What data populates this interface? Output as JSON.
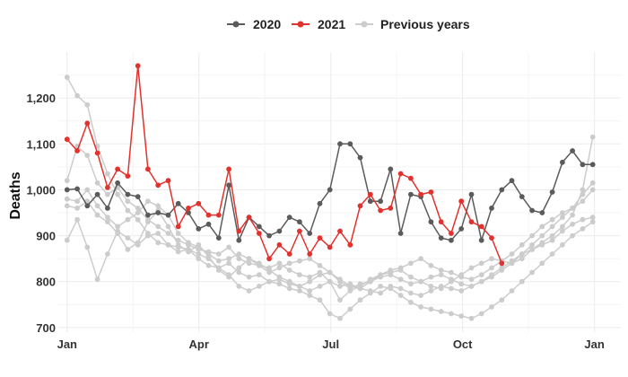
{
  "chart_data": {
    "type": "line",
    "ylabel": "Deaths",
    "ylim": [
      690,
      1300
    ],
    "xlim": [
      -0.2,
      12.6
    ],
    "x_ticks": [
      {
        "label": "Jan",
        "value": 0
      },
      {
        "label": "Apr",
        "value": 3
      },
      {
        "label": "Jul",
        "value": 6
      },
      {
        "label": "Oct",
        "value": 9
      },
      {
        "label": "Jan",
        "value": 12
      }
    ],
    "y_ticks": [
      {
        "label": "700",
        "value": 700
      },
      {
        "label": "800",
        "value": 800
      },
      {
        "label": "900",
        "value": 900
      },
      {
        "label": "1,000",
        "value": 1000
      },
      {
        "label": "1,100",
        "value": 1100
      },
      {
        "label": "1,200",
        "value": 1200
      }
    ],
    "grid": true,
    "legend_position": "top-center",
    "legend": [
      {
        "label": "2020",
        "color": "#5b5b5b"
      },
      {
        "label": "2021",
        "color": "#e2322e"
      },
      {
        "label": "Previous years",
        "color": "#cccccc"
      }
    ],
    "series": [
      {
        "name": "Previous years",
        "color": "#cccccc",
        "x": [
          0.0,
          0.23,
          0.46,
          0.69,
          0.92,
          1.15,
          1.38,
          1.61,
          1.84,
          2.07,
          2.3,
          2.53,
          2.76,
          2.99,
          3.22,
          3.45,
          3.68,
          3.91,
          4.14,
          4.37,
          4.6,
          4.83,
          5.06,
          5.29,
          5.52,
          5.75,
          5.98,
          6.21,
          6.44,
          6.67,
          6.9,
          7.13,
          7.36,
          7.59,
          7.82,
          8.05,
          8.28,
          8.51,
          8.74,
          8.97,
          9.2,
          9.43,
          9.66,
          9.89,
          10.12,
          10.35,
          10.58,
          10.81,
          11.04,
          11.27,
          11.5,
          11.73,
          11.96
        ],
        "values": [
          1245,
          1205,
          1185,
          1095,
          1035,
          990,
          955,
          935,
          905,
          885,
          880,
          875,
          870,
          850,
          835,
          830,
          840,
          820,
          810,
          815,
          800,
          805,
          795,
          790,
          780,
          790,
          800,
          790,
          795,
          785,
          780,
          775,
          790,
          785,
          775,
          770,
          780,
          790,
          785,
          780,
          790,
          800,
          810,
          825,
          840,
          860,
          880,
          900,
          920,
          940,
          960,
          990,
          1015
        ]
      },
      {
        "name": "Previous years",
        "color": "#cccccc",
        "x": [
          0.0,
          0.23,
          0.46,
          0.69,
          0.92,
          1.15,
          1.38,
          1.61,
          1.84,
          2.07,
          2.3,
          2.53,
          2.76,
          2.99,
          3.22,
          3.45,
          3.68,
          3.91,
          4.14,
          4.37,
          4.6,
          4.83,
          5.06,
          5.29,
          5.52,
          5.75,
          5.98,
          6.21,
          6.44,
          6.67,
          6.9,
          7.13,
          7.36,
          7.59,
          7.82,
          8.05,
          8.28,
          8.51,
          8.74,
          8.97,
          9.2,
          9.43,
          9.66,
          9.89,
          10.12,
          10.35,
          10.58,
          10.81,
          11.04,
          11.27,
          11.5,
          11.73,
          11.96
        ],
        "values": [
          1020,
          1095,
          1075,
          1015,
          990,
          1005,
          975,
          960,
          935,
          920,
          905,
          890,
          880,
          870,
          865,
          860,
          875,
          850,
          840,
          835,
          830,
          840,
          825,
          815,
          810,
          820,
          800,
          760,
          780,
          790,
          805,
          815,
          825,
          830,
          840,
          850,
          835,
          825,
          820,
          810,
          805,
          815,
          830,
          845,
          860,
          880,
          900,
          920,
          935,
          950,
          960,
          975,
          1000
        ]
      },
      {
        "name": "Previous years",
        "color": "#cccccc",
        "x": [
          0.0,
          0.23,
          0.46,
          0.69,
          0.92,
          1.15,
          1.38,
          1.61,
          1.84,
          2.07,
          2.3,
          2.53,
          2.76,
          2.99,
          3.22,
          3.45,
          3.68,
          3.91,
          4.14,
          4.37,
          4.6,
          4.83,
          5.06,
          5.29,
          5.52,
          5.75,
          5.98,
          6.21,
          6.44,
          6.67,
          6.9,
          7.13,
          7.36,
          7.59,
          7.82,
          8.05,
          8.28,
          8.51,
          8.74,
          8.97,
          9.2,
          9.43,
          9.66,
          9.89,
          10.12,
          10.35,
          10.58,
          10.81,
          11.04,
          11.27,
          11.5,
          11.73,
          11.96
        ],
        "values": [
          980,
          975,
          1000,
          965,
          940,
          920,
          935,
          950,
          975,
          965,
          945,
          905,
          885,
          875,
          860,
          845,
          850,
          860,
          850,
          835,
          820,
          830,
          840,
          845,
          850,
          835,
          820,
          800,
          785,
          795,
          800,
          810,
          815,
          805,
          795,
          800,
          810,
          815,
          805,
          795,
          790,
          800,
          815,
          830,
          845,
          860,
          870,
          880,
          890,
          910,
          925,
          935,
          940
        ]
      },
      {
        "name": "Previous years",
        "color": "#cccccc",
        "x": [
          0.0,
          0.23,
          0.46,
          0.69,
          0.92,
          1.15,
          1.38,
          1.61,
          1.84,
          2.07,
          2.3,
          2.53,
          2.76,
          2.99,
          3.22,
          3.45,
          3.68,
          3.91,
          4.14,
          4.37,
          4.6,
          4.83,
          5.06,
          5.29,
          5.52,
          5.75,
          5.98,
          6.21,
          6.44,
          6.67,
          6.9,
          7.13,
          7.36,
          7.59,
          7.82,
          8.05,
          8.28,
          8.51,
          8.74,
          8.97,
          9.2,
          9.43,
          9.66,
          9.89,
          10.12,
          10.35,
          10.58,
          10.81,
          11.04,
          11.27,
          11.5,
          11.73,
          11.96
        ],
        "values": [
          890,
          935,
          875,
          805,
          860,
          910,
          895,
          880,
          900,
          905,
          880,
          865,
          870,
          860,
          850,
          830,
          815,
          790,
          780,
          790,
          800,
          795,
          785,
          780,
          770,
          760,
          730,
          720,
          740,
          760,
          775,
          790,
          785,
          770,
          755,
          745,
          740,
          735,
          730,
          725,
          720,
          730,
          745,
          760,
          780,
          800,
          820,
          840,
          860,
          880,
          900,
          915,
          930
        ]
      },
      {
        "name": "Previous years",
        "color": "#cccccc",
        "x": [
          0.0,
          0.23,
          0.46,
          0.69,
          0.92,
          1.15,
          1.38,
          1.61,
          1.84,
          2.07,
          2.3,
          2.53,
          2.76,
          2.99,
          3.22,
          3.45,
          3.68,
          3.91,
          4.14,
          4.37,
          4.6,
          4.83,
          5.06,
          5.29,
          5.52,
          5.75,
          5.98,
          6.21,
          6.44,
          6.67,
          6.9,
          7.13,
          7.36,
          7.59,
          7.82,
          8.05,
          8.28,
          8.51,
          8.74,
          8.97,
          9.2,
          9.43,
          9.66,
          9.89,
          10.12,
          10.35,
          10.58,
          10.81,
          11.04,
          11.27,
          11.5,
          11.73,
          11.96
        ],
        "values": [
          965,
          960,
          975,
          945,
          930,
          905,
          870,
          885,
          930,
          955,
          920,
          880,
          865,
          880,
          855,
          825,
          810,
          830,
          850,
          840,
          825,
          810,
          800,
          790,
          800,
          815,
          820,
          805,
          790,
          785,
          800,
          815,
          820,
          825,
          810,
          800,
          790,
          785,
          800,
          815,
          830,
          840,
          850,
          845,
          840,
          850,
          870,
          885,
          900,
          920,
          945,
          1000,
          1115
        ]
      }
    ],
    "series_highlight": [
      {
        "name": "2020",
        "color": "#5b5b5b",
        "x": [
          0.0,
          0.23,
          0.46,
          0.69,
          0.92,
          1.15,
          1.38,
          1.61,
          1.84,
          2.07,
          2.3,
          2.53,
          2.76,
          2.99,
          3.22,
          3.45,
          3.68,
          3.91,
          4.14,
          4.37,
          4.6,
          4.83,
          5.06,
          5.29,
          5.52,
          5.75,
          5.98,
          6.21,
          6.44,
          6.67,
          6.9,
          7.13,
          7.36,
          7.59,
          7.82,
          8.05,
          8.28,
          8.51,
          8.74,
          8.97,
          9.2,
          9.43,
          9.66,
          9.89,
          10.12,
          10.35,
          10.58,
          10.81,
          11.04,
          11.27,
          11.5,
          11.73,
          11.96
        ],
        "values": [
          1000,
          1002,
          965,
          990,
          960,
          1015,
          990,
          985,
          945,
          950,
          945,
          970,
          950,
          915,
          925,
          895,
          1010,
          890,
          940,
          920,
          900,
          910,
          940,
          930,
          905,
          970,
          1000,
          1100,
          1100,
          1070,
          975,
          975,
          1045,
          905,
          990,
          985,
          930,
          895,
          890,
          915,
          990,
          890,
          960,
          1000,
          1020,
          985,
          955,
          950,
          995,
          1060,
          1085,
          1055,
          1055
        ]
      },
      {
        "name": "2021",
        "color": "#e2322e",
        "x": [
          0.0,
          0.23,
          0.46,
          0.69,
          0.92,
          1.15,
          1.38,
          1.61,
          1.84,
          2.07,
          2.3,
          2.53,
          2.76,
          2.99,
          3.22,
          3.45,
          3.68,
          3.91,
          4.14,
          4.37,
          4.6,
          4.83,
          5.06,
          5.29,
          5.52,
          5.75,
          5.98,
          6.21,
          6.44,
          6.67,
          6.9,
          7.13,
          7.36,
          7.59,
          7.82,
          8.05,
          8.28,
          8.51,
          8.74,
          8.97,
          9.2,
          9.43,
          9.66,
          9.89
        ],
        "values": [
          1110,
          1085,
          1145,
          1080,
          1005,
          1045,
          1030,
          1270,
          1045,
          1010,
          1020,
          920,
          960,
          970,
          945,
          945,
          1045,
          910,
          940,
          905,
          850,
          880,
          860,
          910,
          860,
          895,
          875,
          910,
          880,
          965,
          990,
          955,
          960,
          1035,
          1025,
          990,
          995,
          930,
          905,
          975,
          930,
          920,
          895,
          840
        ]
      }
    ]
  }
}
